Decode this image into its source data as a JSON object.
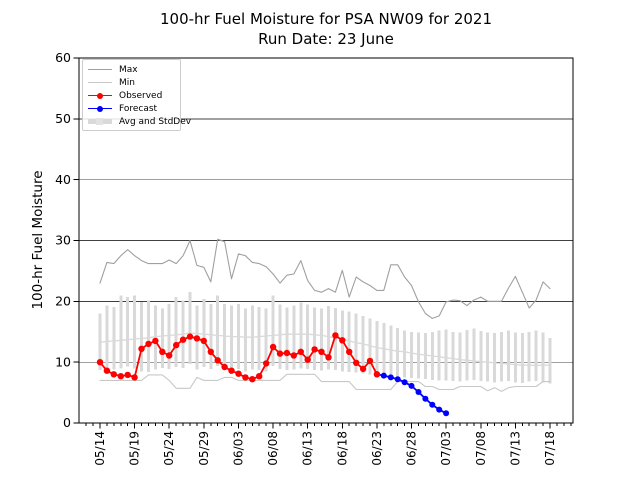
{
  "title": {
    "line1": "100-hr Fuel Moisture for PSA NW09 for 2021",
    "line2": "Run Date: 23 June"
  },
  "axes": {
    "ylabel": "100-hr Fuel Moisture",
    "ylim": [
      0,
      60
    ],
    "ytick_labels": [
      "0",
      "10",
      "20",
      "30",
      "40",
      "50",
      "60"
    ],
    "yticks": [
      0,
      10,
      20,
      30,
      40,
      50,
      60
    ],
    "xtick_labels": [
      "05/14",
      "05/19",
      "05/24",
      "05/29",
      "06/03",
      "06/08",
      "06/13",
      "06/18",
      "06/23",
      "06/28",
      "07/03",
      "07/08",
      "07/13",
      "07/18"
    ],
    "grid": "horizontal"
  },
  "legend": {
    "position": "upper-left",
    "items": [
      {
        "label": "Max",
        "kind": "line",
        "color": "#a0a0a0"
      },
      {
        "label": "Min",
        "kind": "line",
        "color": "#c8c8c8"
      },
      {
        "label": "Observed",
        "kind": "line-marker",
        "color": "#ff0000"
      },
      {
        "label": "Forecast",
        "kind": "line-marker",
        "color": "#0000ff"
      },
      {
        "label": "Avg and StdDev",
        "kind": "thick-line",
        "color": "#d9d9d9"
      }
    ]
  },
  "colors": {
    "observed": "#ff0000",
    "forecast": "#0000ff",
    "max": "#a0a0a0",
    "min": "#c8c8c8",
    "band": "#d9d9d9",
    "avg": "#d9d9d9",
    "grid": "#404040",
    "spine": "#000000"
  },
  "chart_data": {
    "type": "line",
    "title": "100-hr Fuel Moisture for PSA NW09 for 2021 — Run Date: 23 June",
    "xlabel": "",
    "ylabel": "100-hr Fuel Moisture",
    "ylim": [
      0,
      60
    ],
    "dates": [
      "05/14",
      "05/15",
      "05/16",
      "05/17",
      "05/18",
      "05/19",
      "05/20",
      "05/21",
      "05/22",
      "05/23",
      "05/24",
      "05/25",
      "05/26",
      "05/27",
      "05/28",
      "05/29",
      "05/30",
      "05/31",
      "06/01",
      "06/02",
      "06/03",
      "06/04",
      "06/05",
      "06/06",
      "06/07",
      "06/08",
      "06/09",
      "06/10",
      "06/11",
      "06/12",
      "06/13",
      "06/14",
      "06/15",
      "06/16",
      "06/17",
      "06/18",
      "06/19",
      "06/20",
      "06/21",
      "06/22",
      "06/23",
      "06/24",
      "06/25",
      "06/26",
      "06/27",
      "06/28",
      "06/29",
      "06/30",
      "07/01",
      "07/02",
      "07/03",
      "07/04",
      "07/05",
      "07/06",
      "07/07",
      "07/08",
      "07/09",
      "07/10",
      "07/11",
      "07/12",
      "07/13",
      "07/14",
      "07/15",
      "07/16",
      "07/17",
      "07/18"
    ],
    "series": [
      {
        "name": "Max",
        "values": [
          23.0,
          26.4,
          26.2,
          27.5,
          28.5,
          27.5,
          26.7,
          26.2,
          26.2,
          26.2,
          26.8,
          26.2,
          27.5,
          30.0,
          25.9,
          25.6,
          23.2,
          30.2,
          29.8,
          23.7,
          27.8,
          27.5,
          26.4,
          26.2,
          25.7,
          24.5,
          23.0,
          24.3,
          24.5,
          26.7,
          23.4,
          21.8,
          21.5,
          22.1,
          21.5,
          25.1,
          20.7,
          24.0,
          23.2,
          22.6,
          21.8,
          21.8,
          26.0,
          26.0,
          24.0,
          22.6,
          19.9,
          18.0,
          17.2,
          17.6,
          19.9,
          20.2,
          20.1,
          19.3,
          20.2,
          20.7,
          20.0,
          20.0,
          20.0,
          22.2,
          24.1,
          21.5,
          18.9,
          20.2,
          23.2,
          22.1
        ]
      },
      {
        "name": "Min",
        "values": [
          7.0,
          7.0,
          7.0,
          7.0,
          7.0,
          7.0,
          7.0,
          7.9,
          7.9,
          7.9,
          7.0,
          5.7,
          5.7,
          5.7,
          7.5,
          7.0,
          7.0,
          7.0,
          7.5,
          7.5,
          7.0,
          7.0,
          7.0,
          7.0,
          7.0,
          7.0,
          7.0,
          8.0,
          8.0,
          8.0,
          8.0,
          8.0,
          6.8,
          6.8,
          6.8,
          6.8,
          6.8,
          5.5,
          5.5,
          5.5,
          5.5,
          5.5,
          5.5,
          6.8,
          6.8,
          6.8,
          6.8,
          6.0,
          6.0,
          5.5,
          5.5,
          5.5,
          6.0,
          6.0,
          6.0,
          6.0,
          5.3,
          5.8,
          5.2,
          5.8,
          6.0,
          6.0,
          6.0,
          6.0,
          6.8,
          6.8
        ]
      },
      {
        "name": "Avg",
        "values": [
          13.3,
          13.4,
          13.5,
          13.6,
          13.7,
          13.8,
          13.9,
          14.0,
          14.2,
          14.3,
          14.4,
          14.5,
          14.6,
          14.8,
          14.7,
          14.6,
          14.5,
          14.4,
          14.3,
          14.2,
          14.2,
          14.1,
          14.1,
          14.2,
          14.3,
          14.4,
          14.5,
          14.6,
          14.6,
          14.6,
          14.6,
          14.5,
          14.4,
          14.2,
          14.0,
          13.8,
          13.5,
          13.2,
          13.0,
          12.7,
          12.4,
          12.2,
          12.0,
          11.8,
          11.7,
          11.5,
          11.3,
          11.2,
          11.0,
          10.9,
          10.7,
          10.6,
          10.4,
          10.3,
          10.2,
          10.1,
          10.0,
          9.9,
          9.8,
          9.7,
          9.6,
          9.5,
          9.5,
          9.5,
          9.5,
          9.5
        ]
      },
      {
        "name": "StdDevTop",
        "values": [
          18.0,
          19.3,
          19.1,
          21.0,
          20.7,
          21.0,
          19.9,
          20.1,
          19.3,
          18.8,
          19.6,
          20.7,
          20.1,
          21.5,
          19.3,
          20.4,
          19.6,
          21.0,
          19.6,
          19.3,
          19.6,
          18.8,
          19.3,
          19.1,
          18.8,
          21.0,
          19.5,
          19.0,
          19.3,
          19.8,
          19.5,
          19.0,
          18.8,
          19.2,
          18.9,
          18.5,
          18.3,
          18.0,
          17.6,
          17.2,
          16.8,
          16.4,
          16.0,
          15.6,
          15.2,
          15.0,
          14.9,
          14.8,
          15.0,
          15.2,
          15.4,
          15.0,
          14.9,
          15.3,
          15.5,
          15.1,
          14.9,
          14.8,
          15.0,
          15.2,
          14.9,
          14.8,
          15.0,
          15.2,
          14.9,
          14.0
        ]
      },
      {
        "name": "StdDevBottom",
        "values": [
          8.7,
          8.6,
          8.8,
          9.0,
          9.3,
          9.0,
          8.5,
          8.4,
          8.8,
          9.0,
          8.9,
          9.2,
          9.0,
          9.7,
          8.8,
          9.2,
          8.9,
          9.4,
          8.9,
          8.8,
          8.9,
          8.5,
          8.8,
          8.7,
          8.5,
          9.4,
          8.9,
          8.7,
          8.8,
          9.0,
          8.9,
          8.7,
          8.6,
          8.8,
          8.7,
          8.5,
          8.4,
          8.3,
          8.1,
          8.0,
          7.9,
          7.8,
          7.7,
          7.6,
          7.5,
          7.4,
          7.3,
          7.2,
          7.1,
          7.0,
          7.0,
          6.9,
          6.8,
          7.0,
          7.1,
          6.9,
          6.8,
          6.7,
          6.8,
          6.9,
          6.7,
          6.6,
          6.8,
          6.9,
          6.7,
          6.5
        ]
      },
      {
        "name": "Observed",
        "start_index": 0,
        "values": [
          10.0,
          8.6,
          8.0,
          7.7,
          7.9,
          7.5,
          12.2,
          13.0,
          13.5,
          11.7,
          11.1,
          12.8,
          13.7,
          14.2,
          13.9,
          13.5,
          11.7,
          10.3,
          9.2,
          8.6,
          8.1,
          7.5,
          7.2,
          7.7,
          9.8,
          12.5,
          11.4,
          11.5,
          11.1,
          11.7,
          10.4,
          12.1,
          11.7,
          10.8,
          14.4,
          13.6,
          11.7,
          9.9,
          8.9,
          10.2,
          8.0
        ]
      },
      {
        "name": "Forecast",
        "start_index": 40,
        "values": [
          8.0,
          7.8,
          7.5,
          7.2,
          6.7,
          6.1,
          5.1,
          4.0,
          3.0,
          2.2,
          1.6
        ]
      }
    ]
  }
}
